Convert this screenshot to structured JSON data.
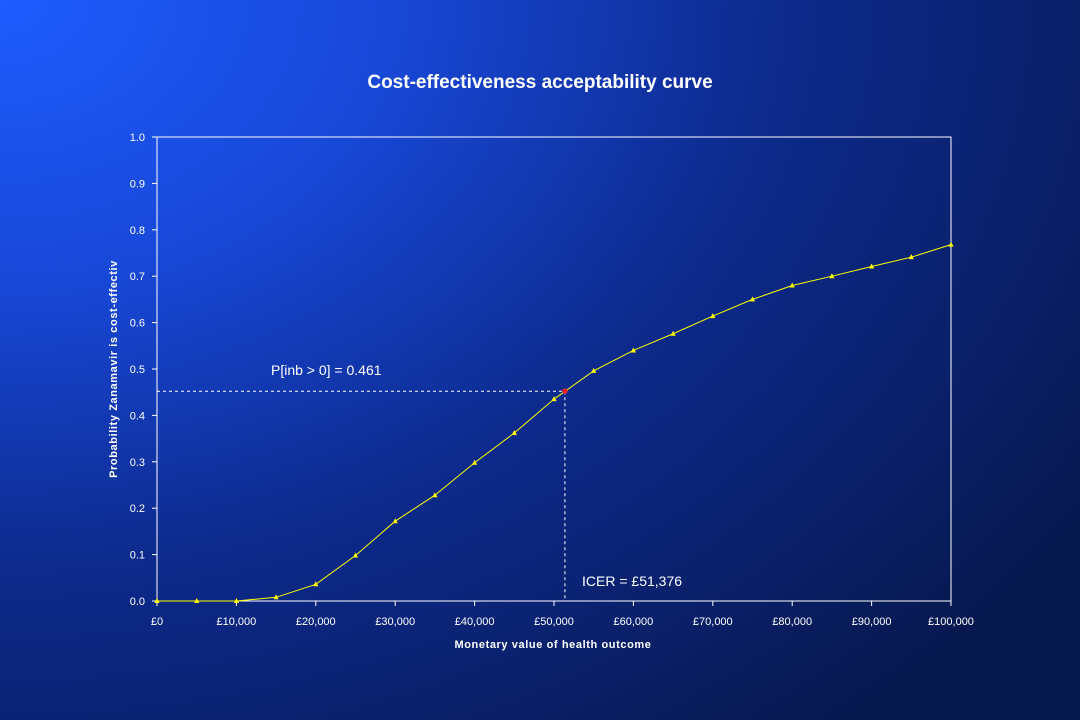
{
  "chart_data": {
    "type": "line",
    "title": "Cost-effectiveness acceptability curve",
    "xlabel": "Monetary value of health outcome",
    "ylabel": "Probability Zanamavir is cost-effectiv",
    "x": [
      0,
      5000,
      10000,
      15000,
      20000,
      25000,
      30000,
      35000,
      40000,
      45000,
      50000,
      55000,
      60000,
      65000,
      70000,
      75000,
      80000,
      85000,
      90000,
      95000,
      100000
    ],
    "series": [
      {
        "values": [
          0.0,
          0.0,
          0.0,
          0.008,
          0.036,
          0.098,
          0.172,
          0.228,
          0.298,
          0.362,
          0.435,
          0.496,
          0.54,
          0.576,
          0.614,
          0.65,
          0.68,
          0.7,
          0.721,
          0.741,
          0.768
        ],
        "color": "#ffff00",
        "marker": "triangle"
      }
    ],
    "xlim": [
      0,
      100000
    ],
    "ylim": [
      0,
      1.0
    ],
    "x_ticks": [
      0,
      10000,
      20000,
      30000,
      40000,
      50000,
      60000,
      70000,
      80000,
      90000,
      100000
    ],
    "x_tick_labels": [
      "£0",
      "£10,000",
      "£20,000",
      "£30,000",
      "£40,000",
      "£50,000",
      "£60,000",
      "£70,000",
      "£80,000",
      "£90,000",
      "£100,000"
    ],
    "y_ticks": [
      0,
      0.1,
      0.2,
      0.3,
      0.4,
      0.5,
      0.6,
      0.7,
      0.8,
      0.9,
      1.0
    ],
    "y_tick_labels": [
      "0.0",
      "0.1",
      "0.2",
      "0.3",
      "0.4",
      "0.5",
      "0.6",
      "0.7",
      "0.8",
      "0.9",
      "1.0"
    ],
    "grid": false,
    "highlight_point": {
      "x": 51376,
      "y": 0.461,
      "color": "#ff2020"
    },
    "annotations": {
      "probability_label": "P[inb > 0] = 0.461",
      "icer_label": "ICER = £51,376"
    }
  }
}
